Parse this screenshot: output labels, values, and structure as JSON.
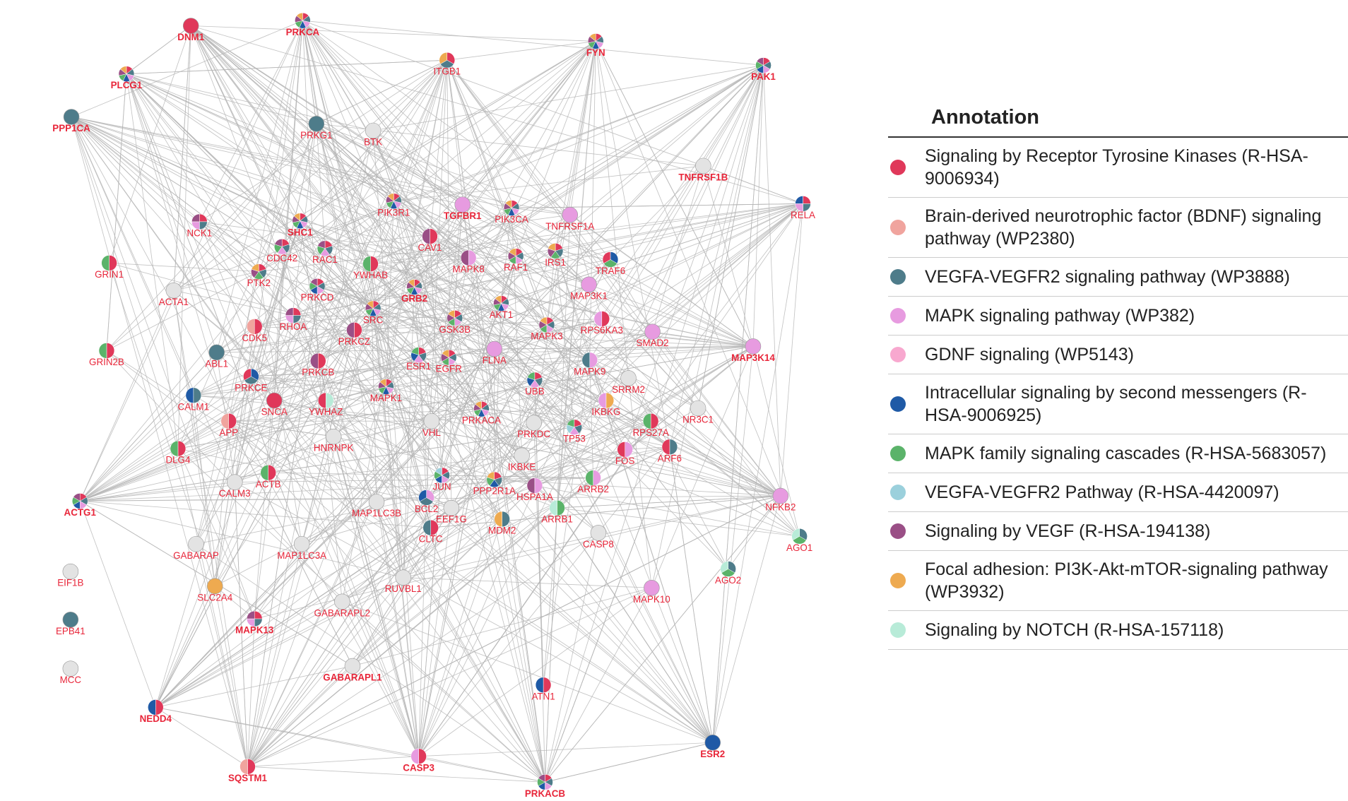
{
  "nodes": [
    {
      "label": "DNM1",
      "colors": [
        "#e0385a"
      ]
    },
    {
      "label": "PRKCA",
      "colors": [
        "#e0385a",
        "#4e7c8a",
        "#e79be0",
        "#1f5aa6",
        "#5bb36a",
        "#9a4f86",
        "#eeaa50"
      ]
    },
    {
      "label": "FYN",
      "colors": [
        "#e0385a",
        "#4e7c8a",
        "#e79be0",
        "#1f5aa6",
        "#5bb36a",
        "#9a4f86",
        "#eeaa50"
      ]
    },
    {
      "label": "ITGB1",
      "colors": [
        "#e0385a",
        "#4e7c8a",
        "#eeaa50"
      ]
    },
    {
      "label": "PAK1",
      "colors": [
        "#e0385a",
        "#4e7c8a",
        "#e79be0",
        "#1f5aa6",
        "#5bb36a",
        "#9a4f86"
      ]
    },
    {
      "label": "PLCG1",
      "colors": [
        "#e0385a",
        "#4e7c8a",
        "#e79be0",
        "#1f5aa6",
        "#5bb36a",
        "#9a4f86",
        "#eeaa50"
      ]
    },
    {
      "label": "PPP1CA",
      "colors": [
        "#4e7c8a"
      ]
    },
    {
      "label": "PRKG1",
      "colors": [
        "#4e7c8a"
      ]
    },
    {
      "label": "BTK",
      "colors": [
        "#e3e3e3"
      ]
    },
    {
      "label": "TNFRSF1B",
      "colors": [
        "#e3e3e3"
      ]
    },
    {
      "label": "PIK3R1",
      "colors": [
        "#e0385a",
        "#4e7c8a",
        "#e79be0",
        "#1f5aa6",
        "#5bb36a",
        "#9a4f86",
        "#eeaa50"
      ]
    },
    {
      "label": "TGFBR1",
      "colors": [
        "#e79be0"
      ]
    },
    {
      "label": "PIK3CA",
      "colors": [
        "#e0385a",
        "#4e7c8a",
        "#e79be0",
        "#1f5aa6",
        "#5bb36a",
        "#9a4f86",
        "#eeaa50"
      ]
    },
    {
      "label": "TNFRSF1A",
      "colors": [
        "#e79be0"
      ]
    },
    {
      "label": "RELA",
      "colors": [
        "#e0385a",
        "#4e7c8a",
        "#e79be0",
        "#1f5aa6"
      ]
    },
    {
      "label": "NCK1",
      "colors": [
        "#e0385a",
        "#4e7c8a",
        "#e79be0",
        "#9a4f86"
      ]
    },
    {
      "label": "SHC1",
      "colors": [
        "#e0385a",
        "#4e7c8a",
        "#e79be0",
        "#1f5aa6",
        "#5bb36a",
        "#9a4f86",
        "#eeaa50"
      ]
    },
    {
      "label": "CAV1",
      "colors": [
        "#e0385a",
        "#9a4f86"
      ]
    },
    {
      "label": "CDC42",
      "colors": [
        "#e0385a",
        "#4e7c8a",
        "#e79be0",
        "#5bb36a",
        "#9a4f86"
      ]
    },
    {
      "label": "RAC1",
      "colors": [
        "#e0385a",
        "#4e7c8a",
        "#e79be0",
        "#5bb36a",
        "#9a4f86"
      ]
    },
    {
      "label": "GRIN1",
      "colors": [
        "#e0385a",
        "#5bb36a"
      ]
    },
    {
      "label": "PTK2",
      "colors": [
        "#e0385a",
        "#4e7c8a",
        "#5bb36a",
        "#9a4f86",
        "#eeaa50"
      ]
    },
    {
      "label": "YWHAB",
      "colors": [
        "#e0385a",
        "#5bb36a"
      ]
    },
    {
      "label": "MAPK8",
      "colors": [
        "#e79be0",
        "#9a4f86"
      ]
    },
    {
      "label": "RAF1",
      "colors": [
        "#e0385a",
        "#4e7c8a",
        "#e79be0",
        "#5bb36a",
        "#9a4f86",
        "#eeaa50"
      ]
    },
    {
      "label": "IRS1",
      "colors": [
        "#e0385a",
        "#4e7c8a",
        "#5bb36a",
        "#9a4f86",
        "#eeaa50"
      ]
    },
    {
      "label": "TRAF6",
      "colors": [
        "#1f5aa6",
        "#5bb36a",
        "#e0385a"
      ]
    },
    {
      "label": "GRB2",
      "colors": [
        "#e0385a",
        "#4e7c8a",
        "#e79be0",
        "#1f5aa6",
        "#5bb36a",
        "#9a4f86",
        "#eeaa50"
      ]
    },
    {
      "label": "ACTA1",
      "colors": [
        "#e3e3e3"
      ]
    },
    {
      "label": "PRKCD",
      "colors": [
        "#e0385a",
        "#4e7c8a",
        "#e79be0",
        "#1f5aa6",
        "#5bb36a",
        "#9a4f86"
      ]
    },
    {
      "label": "MAP3K1",
      "colors": [
        "#e79be0"
      ]
    },
    {
      "label": "SRC",
      "colors": [
        "#e0385a",
        "#4e7c8a",
        "#e79be0",
        "#1f5aa6",
        "#5bb36a",
        "#9a4f86",
        "#eeaa50"
      ]
    },
    {
      "label": "RHOA",
      "colors": [
        "#e0385a",
        "#4e7c8a",
        "#e79be0",
        "#9a4f86"
      ]
    },
    {
      "label": "AKT1",
      "colors": [
        "#e0385a",
        "#4e7c8a",
        "#e79be0",
        "#1f5aa6",
        "#5bb36a",
        "#9a4f86",
        "#eeaa50"
      ]
    },
    {
      "label": "CDK5",
      "colors": [
        "#e0385a",
        "#f0a49e"
      ]
    },
    {
      "label": "GSK3B",
      "colors": [
        "#e0385a",
        "#4e7c8a",
        "#e79be0",
        "#5bb36a",
        "#9a4f86",
        "#eeaa50"
      ]
    },
    {
      "label": "RPS6KA3",
      "colors": [
        "#e0385a",
        "#e79be0"
      ]
    },
    {
      "label": "MAPK3",
      "colors": [
        "#e0385a",
        "#4e7c8a",
        "#e79be0",
        "#5bb36a",
        "#9a4f86",
        "#eeaa50"
      ]
    },
    {
      "label": "SMAD2",
      "colors": [
        "#e79be0"
      ]
    },
    {
      "label": "PRKCZ",
      "colors": [
        "#e0385a",
        "#9a4f86"
      ]
    },
    {
      "label": "GRIN2B",
      "colors": [
        "#e0385a",
        "#5bb36a"
      ]
    },
    {
      "label": "MAP3K14",
      "colors": [
        "#e79be0"
      ]
    },
    {
      "label": "ABL1",
      "colors": [
        "#4e7c8a"
      ]
    },
    {
      "label": "PRKCB",
      "colors": [
        "#e0385a",
        "#9a4f86"
      ]
    },
    {
      "label": "ESR1",
      "colors": [
        "#e0385a",
        "#4e7c8a",
        "#e79be0",
        "#1f5aa6",
        "#5bb36a"
      ]
    },
    {
      "label": "EGFR",
      "colors": [
        "#e0385a",
        "#4e7c8a",
        "#e79be0",
        "#5bb36a",
        "#9a4f86",
        "#eeaa50"
      ]
    },
    {
      "label": "FLNA",
      "colors": [
        "#e79be0"
      ]
    },
    {
      "label": "MAPK9",
      "colors": [
        "#e79be0",
        "#4e7c8a"
      ]
    },
    {
      "label": "PRKCE",
      "colors": [
        "#1f5aa6",
        "#4e7c8a",
        "#e0385a"
      ]
    },
    {
      "label": "UBB",
      "colors": [
        "#e0385a",
        "#4e7c8a",
        "#e79be0",
        "#1f5aa6",
        "#5bb36a"
      ]
    },
    {
      "label": "SRRM2",
      "colors": [
        "#e3e3e3"
      ]
    },
    {
      "label": "CALM1",
      "colors": [
        "#4e7c8a",
        "#1f5aa6"
      ]
    },
    {
      "label": "MAPK1",
      "colors": [
        "#e0385a",
        "#4e7c8a",
        "#e79be0",
        "#1f5aa6",
        "#5bb36a",
        "#9a4f86",
        "#eeaa50"
      ]
    },
    {
      "label": "SNCA",
      "colors": [
        "#e0385a"
      ]
    },
    {
      "label": "YWHAZ",
      "colors": [
        "#b8ebd8",
        "#e0385a"
      ]
    },
    {
      "label": "IKBKG",
      "colors": [
        "#eeaa50",
        "#e79be0"
      ]
    },
    {
      "label": "NR3C1",
      "colors": [
        "#e3e3e3"
      ]
    },
    {
      "label": "PRKACA",
      "colors": [
        "#e0385a",
        "#4e7c8a",
        "#e79be0",
        "#1f5aa6",
        "#5bb36a",
        "#9a4f86",
        "#eeaa50"
      ]
    },
    {
      "label": "APP",
      "colors": [
        "#e0385a",
        "#f0a49e"
      ]
    },
    {
      "label": "VHL",
      "colors": [
        "#e3e3e3"
      ]
    },
    {
      "label": "PRKDC",
      "colors": [
        "#e3e3e3"
      ]
    },
    {
      "label": "RPS27A",
      "colors": [
        "#e0385a",
        "#5bb36a"
      ]
    },
    {
      "label": "TP53",
      "colors": [
        "#e0385a",
        "#4e7c8a",
        "#e79be0",
        "#9bd0dc",
        "#5bb36a"
      ]
    },
    {
      "label": "HNRNPK",
      "colors": [
        "#e3e3e3"
      ]
    },
    {
      "label": "DLG4",
      "colors": [
        "#e0385a",
        "#5bb36a"
      ]
    },
    {
      "label": "FOS",
      "colors": [
        "#e79be0",
        "#e0385a"
      ]
    },
    {
      "label": "ARF6",
      "colors": [
        "#4e7c8a",
        "#e0385a"
      ]
    },
    {
      "label": "IKBKE",
      "colors": [
        "#e3e3e3"
      ]
    },
    {
      "label": "ACTB",
      "colors": [
        "#e0385a",
        "#5bb36a"
      ]
    },
    {
      "label": "CALM3",
      "colors": [
        "#e3e3e3"
      ]
    },
    {
      "label": "JUN",
      "colors": [
        "#e0385a",
        "#4e7c8a",
        "#e79be0",
        "#1f5aa6",
        "#5bb36a",
        "#9bd0dc"
      ]
    },
    {
      "label": "PPP2R1A",
      "colors": [
        "#e0385a",
        "#4e7c8a",
        "#1f5aa6",
        "#5bb36a",
        "#eeaa50"
      ]
    },
    {
      "label": "ARRB2",
      "colors": [
        "#e79be0",
        "#5bb36a"
      ]
    },
    {
      "label": "HSPA1A",
      "colors": [
        "#e79be0",
        "#9a4f86"
      ]
    },
    {
      "label": "ACTG1",
      "colors": [
        "#e0385a",
        "#4e7c8a",
        "#e79be0",
        "#1f5aa6",
        "#5bb36a",
        "#9a4f86"
      ]
    },
    {
      "label": "MAP1LC3B",
      "colors": [
        "#e3e3e3"
      ]
    },
    {
      "label": "BCL2",
      "colors": [
        "#e79be0",
        "#4e7c8a",
        "#1f5aa6"
      ]
    },
    {
      "label": "EEF1G",
      "colors": [
        "#e3e3e3"
      ]
    },
    {
      "label": "NFKB2",
      "colors": [
        "#e79be0"
      ]
    },
    {
      "label": "ARRB1",
      "colors": [
        "#5bb36a",
        "#b8ebd8"
      ]
    },
    {
      "label": "MDM2",
      "colors": [
        "#4e7c8a",
        "#eeaa50"
      ]
    },
    {
      "label": "CLTC",
      "colors": [
        "#e0385a",
        "#4e7c8a"
      ]
    },
    {
      "label": "CASP8",
      "colors": [
        "#e3e3e3"
      ]
    },
    {
      "label": "AGO1",
      "colors": [
        "#4e7c8a",
        "#5bb36a",
        "#b8ebd8"
      ]
    },
    {
      "label": "GABARAP",
      "colors": [
        "#e3e3e3"
      ]
    },
    {
      "label": "MAP1LC3A",
      "colors": [
        "#e3e3e3"
      ]
    },
    {
      "label": "AGO2",
      "colors": [
        "#4e7c8a",
        "#5bb36a",
        "#b8ebd8"
      ]
    },
    {
      "label": "EIF1B",
      "colors": [
        "#e3e3e3"
      ]
    },
    {
      "label": "RUVBL1",
      "colors": [
        "#e3e3e3"
      ]
    },
    {
      "label": "SLC2A4",
      "colors": [
        "#eeaa50"
      ]
    },
    {
      "label": "MAPK10",
      "colors": [
        "#e79be0"
      ]
    },
    {
      "label": "MAPK13",
      "colors": [
        "#e0385a",
        "#4e7c8a",
        "#e79be0",
        "#9a4f86"
      ]
    },
    {
      "label": "GABARAPL2",
      "colors": [
        "#e3e3e3"
      ]
    },
    {
      "label": "EPB41",
      "colors": [
        "#4e7c8a"
      ]
    },
    {
      "label": "MCC",
      "colors": [
        "#e3e3e3"
      ]
    },
    {
      "label": "GABARAPL1",
      "colors": [
        "#e3e3e3"
      ]
    },
    {
      "label": "ATN1",
      "colors": [
        "#e0385a",
        "#1f5aa6"
      ]
    },
    {
      "label": "NEDD4",
      "colors": [
        "#e0385a",
        "#1f5aa6"
      ]
    },
    {
      "label": "SQSTM1",
      "colors": [
        "#e0385a",
        "#f0a49e"
      ]
    },
    {
      "label": "CASP3",
      "colors": [
        "#e0385a",
        "#e79be0"
      ]
    },
    {
      "label": "ESR2",
      "colors": [
        "#1f5aa6"
      ]
    },
    {
      "label": "PRKACB",
      "colors": [
        "#e0385a",
        "#4e7c8a",
        "#e79be0",
        "#1f5aa6",
        "#5bb36a",
        "#9a4f86"
      ]
    }
  ],
  "legend": {
    "title": "Annotation",
    "items": [
      {
        "label": "Signaling by Receptor Tyrosine Kinases (R-HSA-9006934)",
        "color": "#e0385a"
      },
      {
        "label": "Brain-derived neurotrophic factor (BDNF) signaling pathway (WP2380)",
        "color": "#f0a49e"
      },
      {
        "label": "VEGFA-VEGFR2 signaling pathway (WP3888)",
        "color": "#4e7c8a"
      },
      {
        "label": "MAPK signaling pathway (WP382)",
        "color": "#e79be0"
      },
      {
        "label": "GDNF signaling (WP5143)",
        "color": "#f8a8cf"
      },
      {
        "label": "Intracellular signaling by second messengers (R-HSA-9006925)",
        "color": "#1f5aa6"
      },
      {
        "label": "MAPK family signaling cascades (R-HSA-5683057)",
        "color": "#5bb36a"
      },
      {
        "label": "VEGFA-VEGFR2 Pathway (R-HSA-4420097)",
        "color": "#9bd0dc"
      },
      {
        "label": "Signaling by VEGF (R-HSA-194138)",
        "color": "#9a4f86"
      },
      {
        "label": "Focal adhesion: PI3K-Akt-mTOR-signaling pathway (WP3932)",
        "color": "#eeaa50"
      },
      {
        "label": "Signaling by NOTCH (R-HSA-157118)",
        "color": "#b8ebd8"
      }
    ]
  }
}
